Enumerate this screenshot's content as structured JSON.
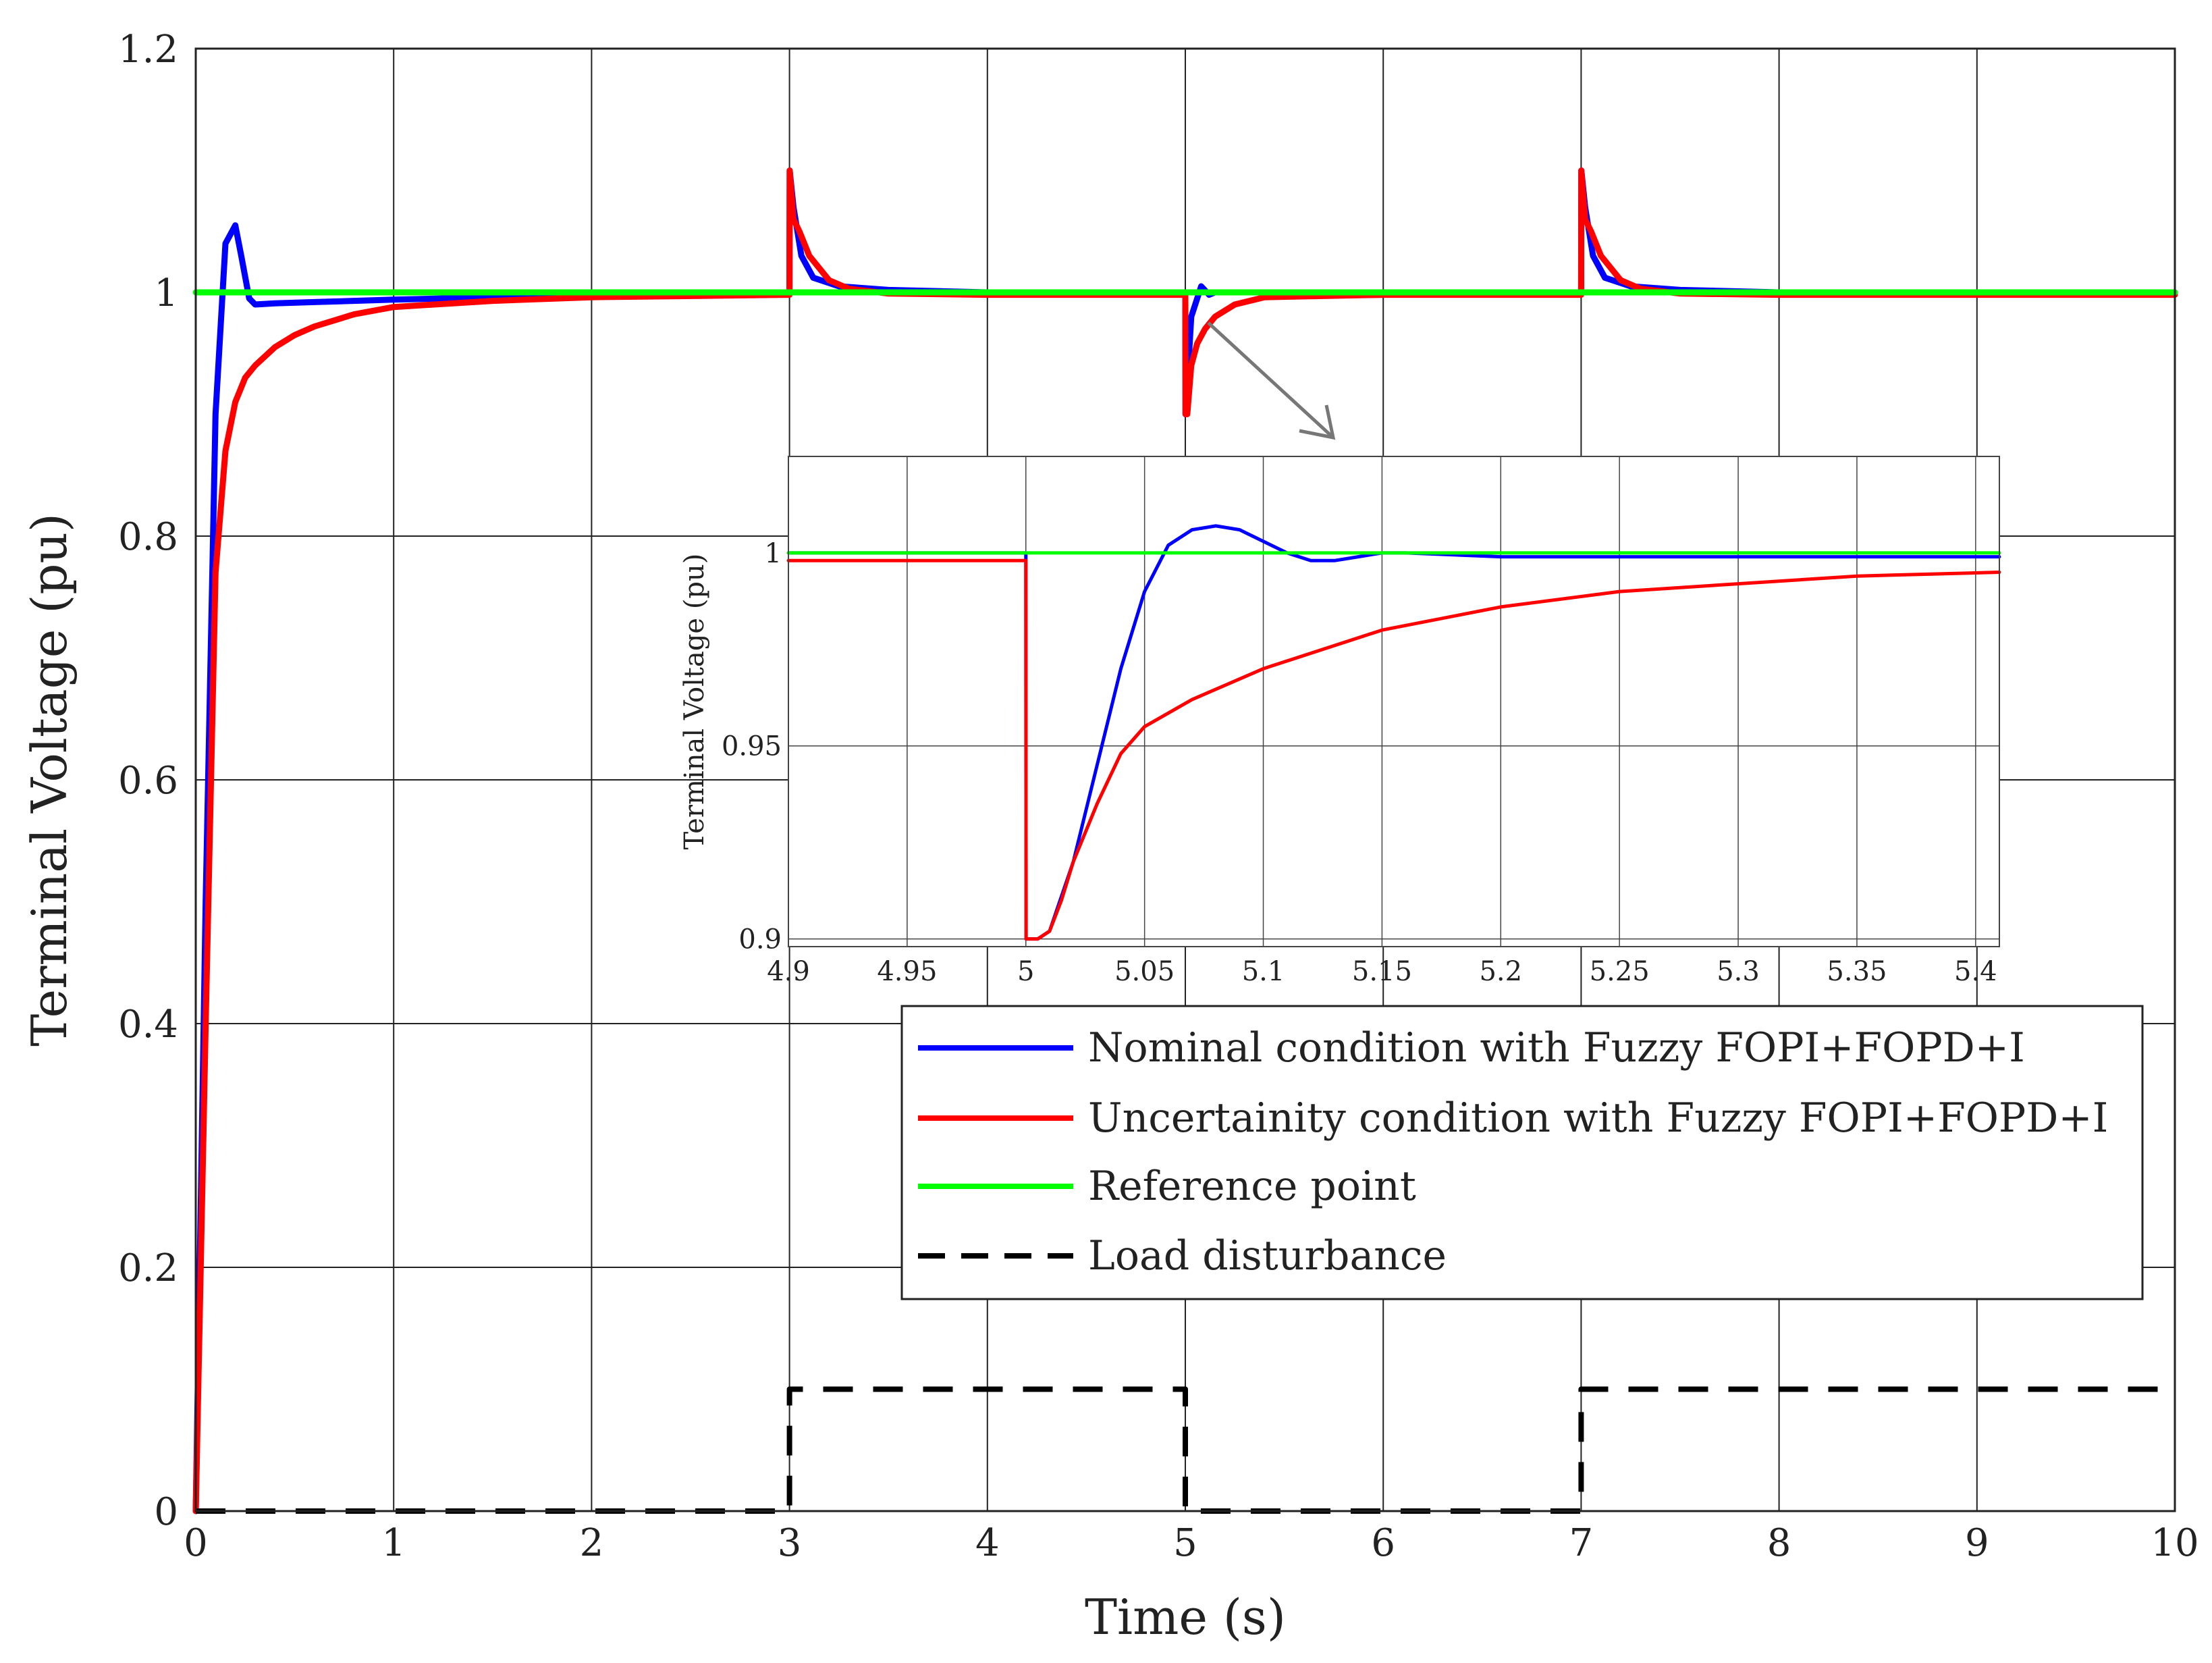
{
  "chart_data": [
    {
      "id": "main",
      "type": "line",
      "title": "",
      "xlabel": "Time (s)",
      "ylabel": "Terminal Voltage (pu)",
      "xlim": [
        0,
        10
      ],
      "ylim": [
        0,
        1.2
      ],
      "x_ticks": [
        0,
        1,
        2,
        3,
        4,
        5,
        6,
        7,
        8,
        9,
        10
      ],
      "x_tick_labels": [
        "0",
        "1",
        "2",
        "3",
        "4",
        "5",
        "6",
        "7",
        "8",
        "9",
        "10"
      ],
      "y_ticks": [
        0,
        0.2,
        0.4,
        0.6,
        0.8,
        1,
        1.2
      ],
      "y_tick_labels": [
        "0",
        "0.2",
        "0.4",
        "0.6",
        "0.8",
        "1",
        "1.2"
      ],
      "grid": true,
      "legend_position": "lower-right",
      "series": [
        {
          "name": "Nominal condition with Fuzzy FOPI+FOPD+I",
          "color": "#0000ff",
          "x": [
            0,
            0.05,
            0.1,
            0.15,
            0.2,
            0.23,
            0.27,
            0.3,
            0.4,
            0.6,
            1,
            1.5,
            2,
            3,
            3.001,
            3.02,
            3.06,
            3.12,
            3.25,
            3.5,
            4,
            5,
            5.001,
            5.03,
            5.08,
            5.12,
            5.15,
            5.3,
            6,
            7,
            7.001,
            7.02,
            7.06,
            7.12,
            7.25,
            7.5,
            8,
            10
          ],
          "y": [
            0,
            0.5,
            0.9,
            1.04,
            1.055,
            1.03,
            0.995,
            0.99,
            0.991,
            0.992,
            0.994,
            0.996,
            0.998,
            1,
            1.1,
            1.07,
            1.03,
            1.012,
            1.005,
            1.002,
            1,
            1,
            0.9,
            0.98,
            1.005,
            0.998,
            1.0,
            1,
            1,
            1,
            1.1,
            1.07,
            1.03,
            1.012,
            1.005,
            1.002,
            1,
            1
          ]
        },
        {
          "name": "Uncertainity condition with Fuzzy FOPI+FOPD+I",
          "color": "#ff0000",
          "x": [
            0,
            0.05,
            0.1,
            0.15,
            0.2,
            0.25,
            0.3,
            0.4,
            0.5,
            0.6,
            0.8,
            1,
            1.5,
            2,
            3,
            3.001,
            3.02,
            3.05,
            3.1,
            3.2,
            3.3,
            3.5,
            4,
            5,
            5.001,
            5.01,
            5.03,
            5.06,
            5.1,
            5.15,
            5.25,
            5.4,
            6,
            7,
            7.001,
            7.02,
            7.05,
            7.1,
            7.2,
            7.3,
            7.5,
            8,
            10
          ],
          "y": [
            0,
            0.4,
            0.77,
            0.87,
            0.91,
            0.93,
            0.94,
            0.955,
            0.965,
            0.972,
            0.982,
            0.988,
            0.993,
            0.996,
            0.998,
            1.1,
            1.06,
            1.05,
            1.03,
            1.01,
            1.003,
            0.999,
            0.998,
            0.998,
            0.9,
            0.9,
            0.94,
            0.958,
            0.97,
            0.98,
            0.99,
            0.996,
            0.998,
            0.998,
            1.1,
            1.06,
            1.05,
            1.03,
            1.01,
            1.003,
            0.999,
            0.998,
            0.998
          ]
        },
        {
          "name": "Reference point",
          "color": "#00ff00",
          "x": [
            0,
            10
          ],
          "y": [
            1,
            1
          ]
        },
        {
          "name": "Load disturbance",
          "color": "#000000",
          "dashed": true,
          "x": [
            0,
            3,
            3,
            5,
            5,
            7,
            7,
            10
          ],
          "y": [
            0,
            0,
            0.1,
            0.1,
            0,
            0,
            0.1,
            0.1
          ]
        }
      ]
    },
    {
      "id": "inset",
      "type": "line",
      "title": "",
      "xlabel": "",
      "ylabel": "Terminal Voltage (pu)",
      "xlim": [
        4.9,
        5.41
      ],
      "ylim": [
        0.898,
        1.025
      ],
      "x_ticks": [
        4.9,
        4.95,
        5,
        5.05,
        5.1,
        5.15,
        5.2,
        5.25,
        5.3,
        5.35,
        5.4
      ],
      "x_tick_labels": [
        "4.9",
        "4.95",
        "5",
        "5.05",
        "5.1",
        "5.15",
        "5.2",
        "5.25",
        "5.3",
        "5.35",
        "5.4"
      ],
      "y_ticks": [
        0.9,
        0.95,
        1
      ],
      "y_tick_labels": [
        "0.9",
        "0.95",
        "1"
      ],
      "grid": true,
      "series": [
        {
          "name": "Nominal condition with Fuzzy FOPI+FOPD+I",
          "color": "#0000ff",
          "x": [
            4.9,
            5.0,
            5.0001,
            5.005,
            5.01,
            5.02,
            5.03,
            5.04,
            5.05,
            5.06,
            5.07,
            5.08,
            5.09,
            5.1,
            5.11,
            5.12,
            5.13,
            5.14,
            5.15,
            5.16,
            5.2,
            5.3,
            5.41
          ],
          "y": [
            1,
            1,
            0.9,
            0.9,
            0.902,
            0.92,
            0.945,
            0.97,
            0.99,
            1.002,
            1.006,
            1.007,
            1.006,
            1.003,
            1.0,
            0.998,
            0.998,
            0.999,
            1.0,
            1.0,
            0.999,
            0.999,
            0.999
          ]
        },
        {
          "name": "Uncertainity condition with Fuzzy FOPI+FOPD+I",
          "color": "#ff0000",
          "x": [
            4.9,
            5.0,
            5.0001,
            5.005,
            5.01,
            5.015,
            5.02,
            5.03,
            5.04,
            5.05,
            5.07,
            5.1,
            5.15,
            5.2,
            5.25,
            5.3,
            5.35,
            5.41
          ],
          "y": [
            0.998,
            0.998,
            0.9,
            0.9,
            0.902,
            0.91,
            0.92,
            0.935,
            0.948,
            0.955,
            0.962,
            0.97,
            0.98,
            0.986,
            0.99,
            0.992,
            0.994,
            0.995
          ]
        },
        {
          "name": "Reference point",
          "color": "#00ff00",
          "x": [
            4.9,
            5.41
          ],
          "y": [
            1,
            1
          ]
        }
      ]
    }
  ]
}
